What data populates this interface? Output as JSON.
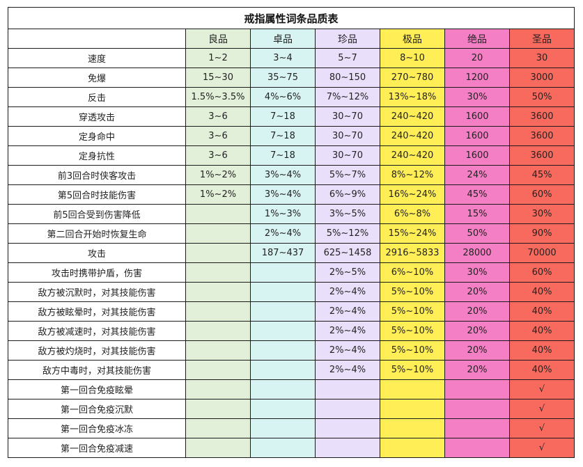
{
  "title": "戒指属性词条品质表",
  "corner": "",
  "grades": [
    "良品",
    "卓品",
    "珍品",
    "极品",
    "绝品",
    "圣品"
  ],
  "colors": [
    "#e2efd9",
    "#d7f4f2",
    "#e9dffa",
    "#ffee55",
    "#f57fc4",
    "#f96a5e"
  ],
  "rows": [
    {
      "attr": "速度",
      "values": [
        "1~2",
        "3~4",
        "5~7",
        "8~10",
        "20",
        "30"
      ]
    },
    {
      "attr": "免爆",
      "values": [
        "15~30",
        "35~75",
        "80~150",
        "270~780",
        "1200",
        "3000"
      ]
    },
    {
      "attr": "反击",
      "values": [
        "1.5%~3.5%",
        "4%~6%",
        "7%~12%",
        "13%~18%",
        "30%",
        "50%"
      ]
    },
    {
      "attr": "穿透攻击",
      "values": [
        "3~6",
        "7~18",
        "30~70",
        "240~420",
        "1600",
        "3600"
      ]
    },
    {
      "attr": "定身命中",
      "values": [
        "3~6",
        "7~18",
        "30~70",
        "240~420",
        "1600",
        "3600"
      ]
    },
    {
      "attr": "定身抗性",
      "values": [
        "3~6",
        "7~18",
        "30~70",
        "240~420",
        "1600",
        "3600"
      ]
    },
    {
      "attr": "前3回合时侠客攻击",
      "values": [
        "1%~2%",
        "3%~4%",
        "5%~7%",
        "8%~12%",
        "24%",
        "45%"
      ]
    },
    {
      "attr": "第5回合时技能伤害",
      "values": [
        "1%~2%",
        "3%~4%",
        "6%~9%",
        "16%~24%",
        "45%",
        "60%"
      ]
    },
    {
      "attr": "前5回合受到伤害降低",
      "values": [
        "",
        "1%~3%",
        "3%~5%",
        "6%~8%",
        "15%",
        "30%"
      ]
    },
    {
      "attr": "第二回合开始时恢复生命",
      "values": [
        "",
        "2%~4%",
        "5%~12%",
        "15%~24%",
        "50%",
        "90%"
      ]
    },
    {
      "attr": "攻击",
      "values": [
        "",
        "187~437",
        "625~1458",
        "2916~5833",
        "28000",
        "70000"
      ]
    },
    {
      "attr": "攻击时携带护盾，伤害",
      "values": [
        "",
        "",
        "2%~5%",
        "6%~10%",
        "30%",
        "60%"
      ]
    },
    {
      "attr": "敌方被沉默时，对其技能伤害",
      "values": [
        "",
        "",
        "2%~4%",
        "5%~10%",
        "20%",
        "40%"
      ]
    },
    {
      "attr": "敌方被眩晕时，对其技能伤害",
      "values": [
        "",
        "",
        "2%~4%",
        "5%~10%",
        "20%",
        "40%"
      ]
    },
    {
      "attr": "敌方被减速时，对其技能伤害",
      "values": [
        "",
        "",
        "2%~4%",
        "5%~10%",
        "20%",
        "40%"
      ]
    },
    {
      "attr": "敌方被灼烧时，对其技能伤害",
      "values": [
        "",
        "",
        "2%~4%",
        "5%~10%",
        "20%",
        "40%"
      ]
    },
    {
      "attr": "敌方中毒时，对其技能伤害",
      "values": [
        "",
        "",
        "2%~4%",
        "5%~10%",
        "20%",
        "40%"
      ]
    },
    {
      "attr": "第一回合免疫眩晕",
      "values": [
        "",
        "",
        "",
        "",
        "",
        "√"
      ]
    },
    {
      "attr": "第一回合免疫沉默",
      "values": [
        "",
        "",
        "",
        "",
        "",
        "√"
      ]
    },
    {
      "attr": "第一回合免疫冰冻",
      "values": [
        "",
        "",
        "",
        "",
        "",
        "√"
      ]
    },
    {
      "attr": "第一回合免疫减速",
      "values": [
        "",
        "",
        "",
        "",
        "",
        "√"
      ]
    }
  ]
}
